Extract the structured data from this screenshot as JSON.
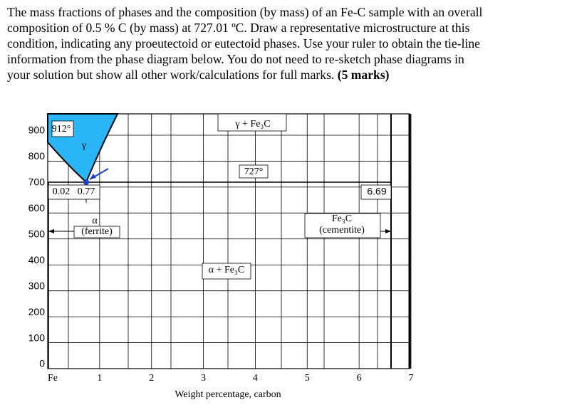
{
  "question": {
    "lines": [
      "The mass fractions of phases and the composition (by mass) of an Fe-C sample with an overall",
      "composition of 0.5 % C (by mass) at 727.01 ºC. Draw a representative microstructure at this",
      "condition, indicating any proeutectoid or eutectoid phases. Use your ruler to obtain the tie-line",
      "information from the phase diagram below. You do not need to re-sketch phase diagrams in",
      "your solution but show all other work/calculations for full marks."
    ],
    "marks": "(5 marks)"
  },
  "diagram": {
    "yticks": [
      0,
      100,
      200,
      300,
      400,
      500,
      600,
      700,
      800,
      900
    ],
    "xticks": [
      {
        "value": 0,
        "label": "Fe"
      },
      1,
      2,
      3,
      4,
      5,
      6,
      7
    ],
    "xlabel": "Weight percentage, carbon",
    "labels": {
      "t912": "912°",
      "gamma": "γ",
      "gamma_fe3c": "γ + Fe₃C",
      "t727": "727°",
      "c002": "0.02",
      "c077": "0.77",
      "c669": "6.69",
      "alpha": "α",
      "ferrite": "(ferrite)",
      "fe3c": "Fe₃C",
      "cementite": "(cementite)",
      "alpha_fe3c": "α + Fe₃C"
    }
  }
}
